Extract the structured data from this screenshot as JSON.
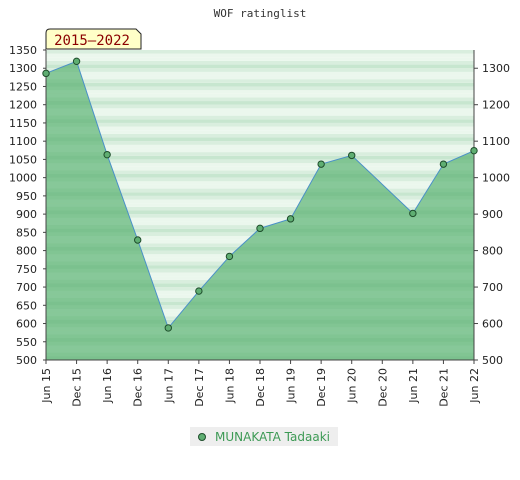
{
  "chart_data": {
    "type": "area",
    "title": "WOF ratinglist",
    "badge": "2015–2022",
    "x": [
      "Jun 15",
      "Dec 15",
      "Jun 16",
      "Dec 16",
      "Jun 17",
      "Dec 17",
      "Jun 18",
      "Dec 18",
      "Jun 19",
      "Dec 19",
      "Jun 20",
      "Dec 20",
      "Jun 21",
      "Dec 21",
      "Jun 22"
    ],
    "series": [
      {
        "name": "MUNAKATA Tadaaki",
        "values": [
          1286,
          1319,
          1063,
          829,
          588,
          689,
          784,
          861,
          887,
          1037,
          1061,
          null,
          902,
          1037,
          1074
        ]
      }
    ],
    "y_left": {
      "min": 500,
      "max": 1350,
      "step": 50
    },
    "y_right": {
      "min": 500,
      "max": 1300,
      "step": 100
    },
    "grid": true,
    "legend_position": "bottom",
    "colors": {
      "fill": "#7cc48f",
      "line": "#4a90c8",
      "marker": "#5fae72",
      "marker_edge": "#1e4d2b",
      "band_dark": "#c7e6cf",
      "band_light": "#f4fbf5",
      "badge_bg": "#ffffc8"
    }
  },
  "legend": {
    "label": "MUNAKATA Tadaaki"
  }
}
